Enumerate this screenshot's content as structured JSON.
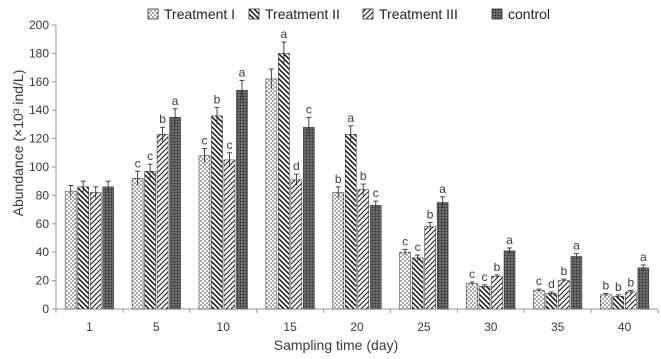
{
  "chart_data": {
    "type": "bar",
    "title": "",
    "xlabel": "Sampling time (day)",
    "ylabel": "Abundance (×10³ ind/L)",
    "ylim": [
      0,
      200
    ],
    "yticks": [
      0,
      20,
      40,
      60,
      80,
      100,
      120,
      140,
      160,
      180,
      200
    ],
    "grid": false,
    "legend_position": "top",
    "categories": [
      "1",
      "5",
      "10",
      "15",
      "20",
      "25",
      "30",
      "35",
      "40"
    ],
    "series": [
      {
        "name": "Treatment I",
        "pattern": "dots",
        "values": [
          83,
          92,
          108,
          162,
          82,
          40,
          18,
          13,
          10
        ],
        "errors": [
          4,
          5,
          5,
          7,
          4,
          2,
          1,
          1,
          1
        ],
        "letters": [
          "",
          "c",
          "c",
          "",
          "b",
          "c",
          "c",
          "c",
          "b"
        ]
      },
      {
        "name": "Treatment II",
        "pattern": "back-diagonal",
        "values": [
          86,
          97,
          136,
          180,
          123,
          36,
          16,
          11,
          9
        ],
        "errors": [
          4,
          5,
          6,
          8,
          6,
          2,
          1,
          1,
          1
        ],
        "letters": [
          "",
          "c",
          "b",
          "a",
          "a",
          "c",
          "c",
          "d",
          "b"
        ]
      },
      {
        "name": "Treatment III",
        "pattern": "forward-diagonal",
        "values": [
          82,
          123,
          105,
          91,
          84,
          58,
          23,
          20,
          12
        ],
        "errors": [
          4,
          5,
          5,
          4,
          4,
          3,
          1,
          1,
          1
        ],
        "letters": [
          "",
          "b",
          "c",
          "d",
          "b",
          "b",
          "b",
          "b",
          "b"
        ]
      },
      {
        "name": "control",
        "pattern": "crosshatch",
        "values": [
          86,
          135,
          154,
          128,
          73,
          75,
          41,
          37,
          29
        ],
        "errors": [
          4,
          6,
          7,
          7,
          3,
          4,
          2,
          2,
          2
        ],
        "letters": [
          "",
          "a",
          "a",
          "c",
          "c",
          "a",
          "a",
          "a",
          "a"
        ]
      }
    ]
  }
}
